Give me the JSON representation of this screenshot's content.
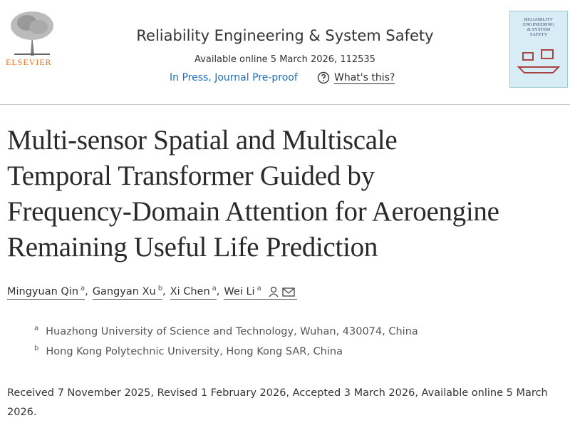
{
  "header": {
    "publisher": "ELSEVIER",
    "journal": "Reliability Engineering & System Safety",
    "availability": "Available online 5 March 2026, 112535",
    "status": "In Press, Journal Pre-proof",
    "help_link": "What's this?",
    "cover_text": [
      "RELIABILITY",
      "ENGINEERING",
      "& SYSTEM",
      "SAFETY"
    ]
  },
  "article": {
    "title_lines": [
      "Multi-sensor Spatial and Multiscale",
      "Temporal Transformer Guided by",
      "Frequency-Domain Attention for Aeroengine",
      "Remaining Useful Life Prediction"
    ],
    "authors": [
      {
        "name": "Mingyuan Qin",
        "affiliation": "a"
      },
      {
        "name": "Gangyan Xu",
        "affiliation": "b"
      },
      {
        "name": "Xi Chen",
        "affiliation": "a"
      },
      {
        "name": "Wei Li",
        "affiliation": "a"
      }
    ],
    "author_separator": ",",
    "affiliations": [
      {
        "label": "a",
        "text": "Huazhong University of Science and Technology, Wuhan, 430074, China"
      },
      {
        "label": "b",
        "text": "Hong Kong Polytechnic University, Hong Kong SAR, China"
      }
    ],
    "dates": "Received 7 November 2025, Revised 1 February 2026, Accepted 3 March 2026, Available online 5 March 2026."
  }
}
